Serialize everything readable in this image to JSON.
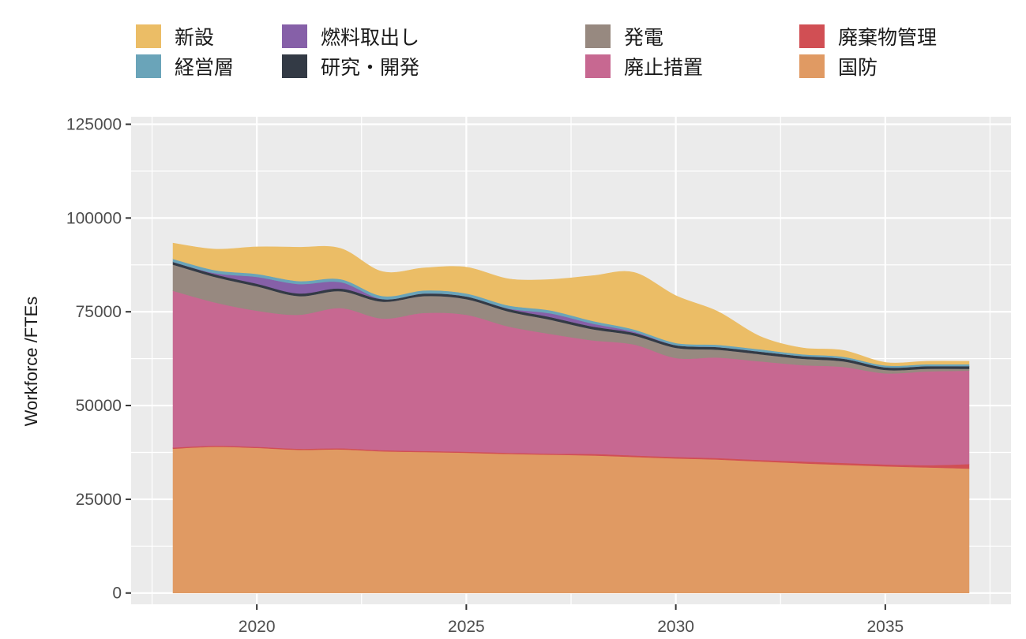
{
  "chart_data": {
    "type": "area",
    "stacked": true,
    "title": "",
    "xlabel": "",
    "ylabel": "Workforce /FTEs",
    "x": [
      2018,
      2019,
      2020,
      2021,
      2022,
      2023,
      2024,
      2025,
      2026,
      2027,
      2028,
      2029,
      2030,
      2031,
      2032,
      2033,
      2034,
      2035,
      2036,
      2037
    ],
    "xlim": [
      2017,
      2038
    ],
    "ylim": [
      -3000,
      127000
    ],
    "x_ticks": [
      2020,
      2025,
      2030,
      2035
    ],
    "x_tick_labels": [
      "2020",
      "2025",
      "2030",
      "2035"
    ],
    "y_ticks": [
      0,
      25000,
      50000,
      75000,
      100000,
      125000
    ],
    "y_tick_labels": [
      "0",
      "25000",
      "50000",
      "75000",
      "100000",
      "125000"
    ],
    "grid": true,
    "legend_position": "top",
    "series": [
      {
        "name": "国防",
        "color": "#e09a63",
        "values": [
          38500,
          39000,
          38700,
          38200,
          38300,
          37800,
          37600,
          37400,
          37100,
          36900,
          36700,
          36300,
          35900,
          35600,
          35100,
          34600,
          34200,
          33800,
          33500,
          33200
        ]
      },
      {
        "name": "廃棄物管理",
        "color": "#d14f54",
        "values": [
          300,
          300,
          300,
          300,
          300,
          300,
          300,
          300,
          300,
          300,
          400,
          400,
          400,
          400,
          400,
          500,
          500,
          500,
          600,
          1200
        ]
      },
      {
        "name": "廃止措置",
        "color": "#c76891",
        "values": [
          41800,
          38200,
          36300,
          35700,
          37400,
          35100,
          36800,
          36500,
          33700,
          31900,
          30300,
          29600,
          26400,
          26800,
          26300,
          25700,
          25600,
          24300,
          25000,
          24900
        ]
      },
      {
        "name": "発電",
        "color": "#978980",
        "values": [
          7000,
          6800,
          6500,
          5000,
          4500,
          4500,
          4500,
          4200,
          4000,
          3800,
          3000,
          2400,
          2700,
          2100,
          1900,
          1700,
          1500,
          900,
          700,
          500
        ]
      },
      {
        "name": "研究・開発",
        "color": "#333a45",
        "values": [
          700,
          700,
          700,
          700,
          700,
          700,
          700,
          700,
          700,
          700,
          700,
          700,
          700,
          700,
          700,
          700,
          700,
          700,
          700,
          700
        ]
      },
      {
        "name": "燃料取出し",
        "color": "#8660a8",
        "values": [
          0,
          300,
          1800,
          2500,
          1700,
          0,
          0,
          0,
          100,
          1000,
          800,
          300,
          0,
          0,
          0,
          0,
          0,
          0,
          0,
          0
        ]
      },
      {
        "name": "経営層",
        "color": "#6aa4b9",
        "values": [
          800,
          800,
          800,
          800,
          800,
          800,
          800,
          800,
          800,
          800,
          700,
          600,
          600,
          600,
          600,
          500,
          500,
          500,
          500,
          500
        ]
      },
      {
        "name": "新設",
        "color": "#ebbd66",
        "values": [
          4200,
          5600,
          7200,
          9000,
          8200,
          6500,
          6000,
          7000,
          7100,
          8200,
          12000,
          15200,
          12600,
          8900,
          3500,
          1700,
          1700,
          800,
          800,
          800
        ]
      }
    ],
    "legend": [
      {
        "name": "新設",
        "color": "#ebbd66"
      },
      {
        "name": "燃料取出し",
        "color": "#8660a8"
      },
      {
        "name": "発電",
        "color": "#978980"
      },
      {
        "name": "廃棄物管理",
        "color": "#d14f54"
      },
      {
        "name": "経営層",
        "color": "#6aa4b9"
      },
      {
        "name": "研究・開発",
        "color": "#333a45"
      },
      {
        "name": "廃止措置",
        "color": "#c76891"
      },
      {
        "name": "国防",
        "color": "#e09a63"
      }
    ],
    "panel_background": "#ebebeb",
    "grid_color": "#ffffff"
  }
}
